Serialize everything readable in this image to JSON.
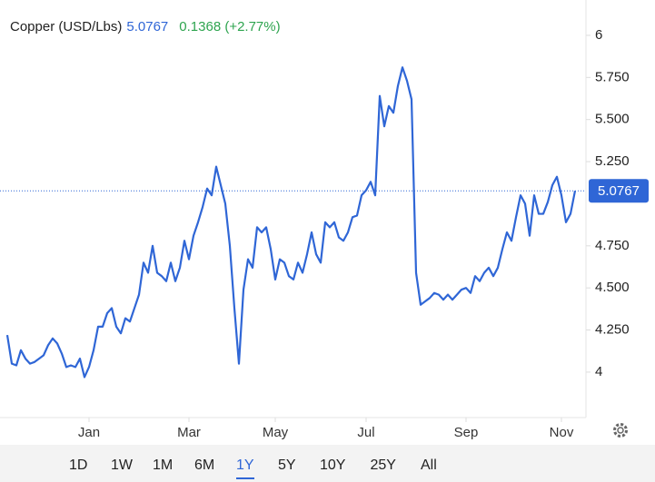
{
  "chart_data": {
    "type": "line",
    "title": "Copper (USD/Lbs)",
    "change_label": "0.1368 (+2.77%)",
    "categories": [
      null,
      null,
      null,
      null,
      null,
      null,
      null,
      null,
      null,
      null,
      null,
      null,
      null,
      null,
      null,
      null,
      null,
      null,
      "Jan",
      null,
      null,
      null,
      null,
      null,
      null,
      null,
      null,
      null,
      null,
      null,
      null,
      null,
      null,
      null,
      null,
      null,
      null,
      null,
      null,
      null,
      "Mar",
      null,
      null,
      null,
      null,
      null,
      null,
      null,
      null,
      null,
      null,
      null,
      null,
      null,
      null,
      null,
      null,
      null,
      null,
      "May",
      null,
      null,
      null,
      null,
      null,
      null,
      null,
      null,
      null,
      null,
      null,
      null,
      null,
      null,
      null,
      null,
      null,
      null,
      null,
      "Jul",
      null,
      null,
      null,
      null,
      null,
      null,
      null,
      null,
      null,
      null,
      null,
      null,
      null,
      null,
      null,
      null,
      null,
      null,
      null,
      null,
      null,
      "Sep",
      null,
      null,
      null,
      null,
      null,
      null,
      null,
      null,
      null,
      null,
      null,
      null,
      null,
      null,
      null,
      null,
      null,
      null,
      null,
      null,
      "Nov",
      null,
      null,
      null
    ],
    "series": [
      {
        "name": "Copper",
        "color": "#2f66d6",
        "values": [
          4.22,
          4.05,
          4.04,
          4.13,
          4.08,
          4.05,
          4.06,
          4.08,
          4.1,
          4.16,
          4.2,
          4.17,
          4.11,
          4.03,
          4.04,
          4.03,
          4.08,
          3.97,
          4.03,
          4.13,
          4.27,
          4.27,
          4.35,
          4.38,
          4.27,
          4.23,
          4.32,
          4.3,
          4.38,
          4.46,
          4.65,
          4.59,
          4.75,
          4.59,
          4.57,
          4.54,
          4.65,
          4.54,
          4.62,
          4.78,
          4.67,
          4.81,
          4.89,
          4.98,
          5.09,
          5.05,
          5.22,
          5.11,
          5.0,
          4.75,
          4.38,
          4.05,
          4.49,
          4.67,
          4.62,
          4.86,
          4.83,
          4.86,
          4.73,
          4.55,
          4.67,
          4.65,
          4.57,
          4.55,
          4.65,
          4.59,
          4.7,
          4.83,
          4.7,
          4.65,
          4.89,
          4.86,
          4.89,
          4.8,
          4.78,
          4.83,
          4.92,
          4.93,
          5.05,
          5.08,
          5.13,
          5.05,
          5.64,
          5.46,
          5.58,
          5.54,
          5.7,
          5.81,
          5.73,
          5.62,
          4.59,
          4.4,
          4.42,
          4.44,
          4.47,
          4.46,
          4.43,
          4.46,
          4.43,
          4.46,
          4.49,
          4.5,
          4.47,
          4.57,
          4.54,
          4.59,
          4.62,
          4.57,
          4.62,
          4.73,
          4.83,
          4.78,
          4.92,
          5.05,
          5.0,
          4.81,
          5.05,
          4.94,
          4.94,
          5.01,
          5.11,
          5.16,
          5.05,
          4.89,
          4.94,
          5.0767
        ]
      }
    ],
    "ylim": [
      3.73,
      6.21
    ],
    "yticks": [
      4,
      {
        "value": 4.25,
        "label": "4.250"
      },
      {
        "value": 4.5,
        "label": "4.500"
      },
      {
        "value": 4.75,
        "label": "4.750"
      },
      {
        "value": 5.25,
        "label": "5.250"
      },
      {
        "value": 5.5,
        "label": "5.500"
      },
      {
        "value": 5.75,
        "label": "5.750"
      },
      6
    ],
    "grid": false,
    "change_color": "#2ea44f"
  },
  "toolbar": {
    "buttons": [
      "1D",
      "1W",
      "1M",
      "6M",
      "1Y",
      "5Y",
      "10Y",
      "25Y",
      "All"
    ],
    "selected": 4
  }
}
